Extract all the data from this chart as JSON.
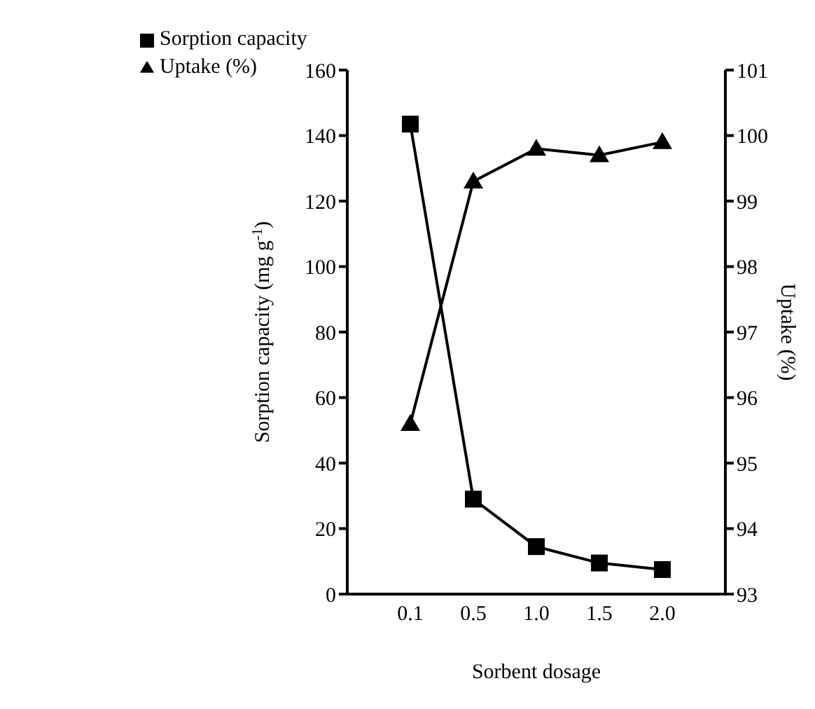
{
  "chart_data": {
    "type": "line",
    "xlabel": "Sorbent dosage",
    "ylabel": "Sorption capacity (mg g$^{-1}$)",
    "y2label": "Uptake (%)",
    "categories": [
      "0.1",
      "0.5",
      "1.0",
      "1.5",
      "2.0"
    ],
    "series": [
      {
        "name": "Sorption capacity",
        "color": "#000000",
        "marker": "square",
        "values": [
          143.5,
          29,
          14.5,
          9.5,
          7.5
        ]
      },
      {
        "name": "Uptake (%)",
        "color": "#000000",
        "marker": "triangle",
        "axis": "y2",
        "values": [
          95.6,
          99.3,
          99.8,
          99.7,
          99.9
        ]
      }
    ],
    "ylim": [
      0,
      160
    ],
    "yticks": [
      0,
      20,
      40,
      60,
      80,
      100,
      120,
      140,
      160
    ],
    "y2lim": [
      93,
      101
    ],
    "y2ticks": [
      93,
      94,
      95,
      96,
      97,
      98,
      99,
      100,
      101
    ],
    "grid": false,
    "legend": "top left",
    "line_style": "solid"
  }
}
